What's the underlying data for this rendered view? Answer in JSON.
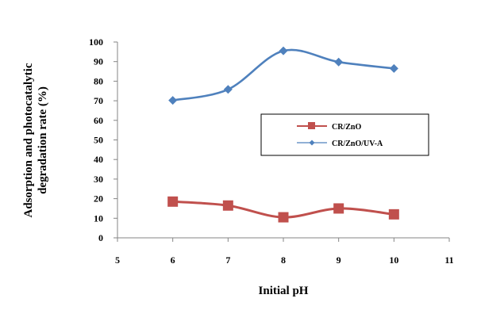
{
  "chart_data": {
    "type": "line",
    "title": "",
    "xlabel": "Initial pH",
    "ylabel_line1": "Adsorption and photocatalytic",
    "ylabel_line2": "degradation rate  (%)",
    "xlim": [
      5,
      11
    ],
    "ylim": [
      0,
      100
    ],
    "x_ticks": [
      5,
      6,
      7,
      8,
      9,
      10,
      11
    ],
    "y_ticks": [
      0,
      10,
      20,
      30,
      40,
      50,
      60,
      70,
      80,
      90,
      100
    ],
    "x": [
      6,
      7,
      8,
      9,
      10
    ],
    "grid": false,
    "legend_position": "right",
    "series": [
      {
        "name": "CR/ZnO",
        "values": [
          18.5,
          16.5,
          10.5,
          15,
          12
        ],
        "color": "#c0504d",
        "marker": "square"
      },
      {
        "name": "CR/ZnO/UV-A",
        "values": [
          70.2,
          75.8,
          95.5,
          89.8,
          86.5
        ],
        "color": "#4f81bd",
        "marker": "diamond"
      }
    ]
  }
}
